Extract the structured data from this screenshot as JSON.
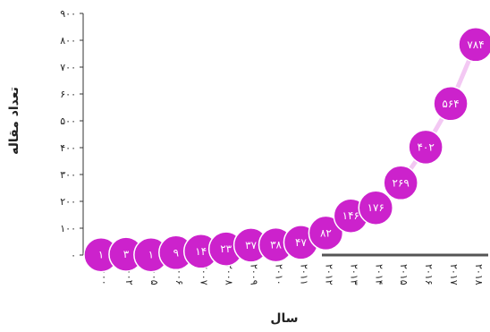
{
  "chart_data": {
    "type": "line",
    "title": "",
    "xlabel": "سال",
    "ylabel": "تعداد مقاله",
    "x": [
      "۲۰۰۰",
      "۲۰۰۲",
      "۲۰۰۵",
      "۲۰۰۶",
      "۲۰۰۷",
      "۲۰۰۸",
      "۲۰۰۹",
      "۲۰۱۰",
      "۲۰۱۱",
      "۲۰۱۲",
      "۲۰۱۳",
      "۲۰۱۴",
      "۲۰۱۵",
      "۲۰۱۶",
      "۲۰۱۷",
      "۲۰۱۸"
    ],
    "values": [
      1,
      3,
      1,
      9,
      14,
      23,
      37,
      38,
      47,
      82,
      146,
      176,
      269,
      402,
      564,
      784
    ],
    "point_labels": [
      "۱",
      "۳",
      "۱",
      "۹",
      "۱۴",
      "۲۳",
      "۳۷",
      "۳۸",
      "۴۷",
      "۸۲",
      "۱۴۶",
      "۱۷۶",
      "۲۶۹",
      "۴۰۲",
      "۵۶۴",
      "۷۸۴"
    ],
    "ylim": [
      0,
      900
    ],
    "yticks": [
      0,
      100,
      200,
      300,
      400,
      500,
      600,
      700,
      800,
      900
    ],
    "ytick_labels": [
      "۰",
      "۱۰۰",
      "۲۰۰",
      "۳۰۰",
      "۴۰۰",
      "۵۰۰",
      "۶۰۰",
      "۷۰۰",
      "۸۰۰",
      "۹۰۰"
    ],
    "grid": false,
    "colors": {
      "marker": "#cc22cc",
      "marker_stroke": "#ffffff",
      "line": "#f3c8f3",
      "baseline": "#555555",
      "axis": "#333333",
      "label_text": "#ffffff"
    }
  }
}
